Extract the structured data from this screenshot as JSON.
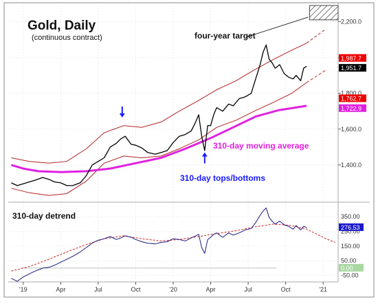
{
  "colors": {
    "price": "#000000",
    "channel": "#b22222",
    "ma": "#e020e0",
    "ann_blue": "#1a1aff",
    "detrend_line": "#1a1a80",
    "detrend_ma": "#cc2222",
    "grid": "#d0d0d0",
    "badge_red": "#ee0000",
    "badge_black": "#000000",
    "badge_magenta": "#e020e0",
    "badge_blue": "#1a1acc",
    "badge_green": "#a8d8a0"
  },
  "chart_data": [
    {
      "type": "line",
      "title": "Gold, Daily",
      "subtitle": "(continuous contract)",
      "x_ticks": [
        "'19",
        "Apr",
        "Jul",
        "Oct",
        "'20",
        "Apr",
        "Jul",
        "Oct",
        "'21"
      ],
      "y_ticks": [
        "2,200.0",
        "2,000.0",
        "1,800.0",
        "1,600.0",
        "1,400.0"
      ],
      "ylim": [
        1200,
        2290
      ],
      "x_range": [
        2018.9,
        2021.1
      ],
      "annotations": [
        {
          "text": "four-year target"
        },
        {
          "text": "310-day moving average"
        },
        {
          "text": "310-day tops/bottoms"
        }
      ],
      "badges": [
        {
          "value": "1,987.7",
          "color": "badge_red"
        },
        {
          "value": "1,951.7",
          "color": "badge_black"
        },
        {
          "value": "1,762.7",
          "color": "badge_red"
        },
        {
          "value": "1,722.9",
          "color": "badge_magenta"
        }
      ],
      "price": [
        [
          2018.92,
          1300
        ],
        [
          2018.96,
          1285
        ],
        [
          2019.0,
          1295
        ],
        [
          2019.04,
          1305
        ],
        [
          2019.08,
          1315
        ],
        [
          2019.13,
          1330
        ],
        [
          2019.17,
          1320
        ],
        [
          2019.21,
          1305
        ],
        [
          2019.25,
          1300
        ],
        [
          2019.29,
          1285
        ],
        [
          2019.33,
          1285
        ],
        [
          2019.38,
          1300
        ],
        [
          2019.42,
          1340
        ],
        [
          2019.46,
          1400
        ],
        [
          2019.5,
          1420
        ],
        [
          2019.54,
          1440
        ],
        [
          2019.58,
          1500
        ],
        [
          2019.62,
          1520
        ],
        [
          2019.65,
          1545
        ],
        [
          2019.68,
          1560
        ],
        [
          2019.72,
          1515
        ],
        [
          2019.75,
          1510
        ],
        [
          2019.79,
          1495
        ],
        [
          2019.83,
          1470
        ],
        [
          2019.88,
          1460
        ],
        [
          2019.92,
          1470
        ],
        [
          2019.96,
          1480
        ],
        [
          2020.0,
          1525
        ],
        [
          2020.04,
          1560
        ],
        [
          2020.08,
          1570
        ],
        [
          2020.12,
          1590
        ],
        [
          2020.15,
          1640
        ],
        [
          2020.17,
          1680
        ],
        [
          2020.19,
          1560
        ],
        [
          2020.21,
          1480
        ],
        [
          2020.23,
          1620
        ],
        [
          2020.25,
          1620
        ],
        [
          2020.27,
          1680
        ],
        [
          2020.29,
          1720
        ],
        [
          2020.33,
          1700
        ],
        [
          2020.37,
          1740
        ],
        [
          2020.4,
          1730
        ],
        [
          2020.44,
          1770
        ],
        [
          2020.48,
          1780
        ],
        [
          2020.52,
          1800
        ],
        [
          2020.55,
          1880
        ],
        [
          2020.58,
          1960
        ],
        [
          2020.6,
          2030
        ],
        [
          2020.62,
          2070
        ],
        [
          2020.64,
          1990
        ],
        [
          2020.66,
          1970
        ],
        [
          2020.68,
          1940
        ],
        [
          2020.71,
          1960
        ],
        [
          2020.74,
          1910
        ],
        [
          2020.77,
          1890
        ],
        [
          2020.8,
          1880
        ],
        [
          2020.82,
          1900
        ],
        [
          2020.85,
          1870
        ],
        [
          2020.87,
          1940
        ],
        [
          2020.89,
          1951
        ]
      ],
      "moving_average": [
        [
          2018.92,
          1400
        ],
        [
          2019.0,
          1380
        ],
        [
          2019.1,
          1365
        ],
        [
          2019.25,
          1360
        ],
        [
          2019.42,
          1365
        ],
        [
          2019.58,
          1380
        ],
        [
          2019.75,
          1410
        ],
        [
          2019.92,
          1440
        ],
        [
          2020.08,
          1490
        ],
        [
          2020.25,
          1550
        ],
        [
          2020.4,
          1610
        ],
        [
          2020.55,
          1670
        ],
        [
          2020.7,
          1705
        ],
        [
          2020.89,
          1730
        ]
      ],
      "channel_upper": [
        [
          2018.92,
          1440
        ],
        [
          2019.04,
          1420
        ],
        [
          2019.17,
          1410
        ],
        [
          2019.29,
          1420
        ],
        [
          2019.42,
          1490
        ],
        [
          2019.54,
          1580
        ],
        [
          2019.67,
          1620
        ],
        [
          2019.79,
          1610
        ],
        [
          2019.92,
          1640
        ],
        [
          2020.04,
          1700
        ],
        [
          2020.17,
          1760
        ],
        [
          2020.29,
          1820
        ],
        [
          2020.42,
          1870
        ],
        [
          2020.54,
          1930
        ],
        [
          2020.67,
          1990
        ],
        [
          2020.79,
          2040
        ],
        [
          2020.89,
          2080
        ]
      ],
      "channel_lower": [
        [
          2018.92,
          1270
        ],
        [
          2019.04,
          1245
        ],
        [
          2019.17,
          1230
        ],
        [
          2019.29,
          1240
        ],
        [
          2019.42,
          1310
        ],
        [
          2019.54,
          1410
        ],
        [
          2019.67,
          1450
        ],
        [
          2019.79,
          1440
        ],
        [
          2019.92,
          1450
        ],
        [
          2020.04,
          1490
        ],
        [
          2020.17,
          1540
        ],
        [
          2020.29,
          1610
        ],
        [
          2020.42,
          1650
        ],
        [
          2020.54,
          1700
        ],
        [
          2020.67,
          1750
        ],
        [
          2020.79,
          1800
        ],
        [
          2020.89,
          1860
        ]
      ],
      "channel_upper_proj": [
        [
          2020.89,
          2080
        ],
        [
          2021.02,
          2160
        ]
      ],
      "channel_lower_proj": [
        [
          2020.89,
          1860
        ],
        [
          2021.02,
          1930
        ]
      ]
    },
    {
      "type": "line",
      "title": "310-day detrend",
      "y_ticks": [
        "350.00",
        "250.00",
        "150.00",
        "50.00",
        "-50.00"
      ],
      "ylim": [
        -85,
        440
      ],
      "badges": [
        {
          "value": "276.53",
          "color": "badge_blue"
        },
        {
          "value": "0.00",
          "color": "badge_green"
        }
      ],
      "detrend": [
        [
          2018.92,
          -70
        ],
        [
          2018.96,
          -90
        ],
        [
          2019.0,
          -60
        ],
        [
          2019.04,
          -40
        ],
        [
          2019.08,
          -20
        ],
        [
          2019.13,
          0
        ],
        [
          2019.17,
          5
        ],
        [
          2019.21,
          20
        ],
        [
          2019.25,
          40
        ],
        [
          2019.29,
          60
        ],
        [
          2019.33,
          80
        ],
        [
          2019.38,
          110
        ],
        [
          2019.42,
          140
        ],
        [
          2019.46,
          170
        ],
        [
          2019.5,
          190
        ],
        [
          2019.54,
          200
        ],
        [
          2019.58,
          215
        ],
        [
          2019.62,
          195
        ],
        [
          2019.65,
          205
        ],
        [
          2019.68,
          220
        ],
        [
          2019.72,
          210
        ],
        [
          2019.75,
          195
        ],
        [
          2019.79,
          180
        ],
        [
          2019.83,
          170
        ],
        [
          2019.88,
          165
        ],
        [
          2019.92,
          175
        ],
        [
          2019.96,
          180
        ],
        [
          2020.0,
          200
        ],
        [
          2020.04,
          195
        ],
        [
          2020.08,
          185
        ],
        [
          2020.12,
          205
        ],
        [
          2020.15,
          220
        ],
        [
          2020.17,
          230
        ],
        [
          2020.19,
          140
        ],
        [
          2020.21,
          100
        ],
        [
          2020.23,
          195
        ],
        [
          2020.25,
          210
        ],
        [
          2020.27,
          230
        ],
        [
          2020.29,
          240
        ],
        [
          2020.33,
          210
        ],
        [
          2020.37,
          240
        ],
        [
          2020.4,
          225
        ],
        [
          2020.44,
          240
        ],
        [
          2020.48,
          260
        ],
        [
          2020.52,
          270
        ],
        [
          2020.55,
          310
        ],
        [
          2020.58,
          360
        ],
        [
          2020.6,
          390
        ],
        [
          2020.62,
          410
        ],
        [
          2020.64,
          345
        ],
        [
          2020.66,
          320
        ],
        [
          2020.68,
          300
        ],
        [
          2020.71,
          320
        ],
        [
          2020.74,
          295
        ],
        [
          2020.77,
          285
        ],
        [
          2020.8,
          265
        ],
        [
          2020.82,
          290
        ],
        [
          2020.85,
          260
        ],
        [
          2020.87,
          285
        ],
        [
          2020.89,
          276
        ]
      ],
      "detrend_ma": [
        [
          2018.92,
          -20
        ],
        [
          2019.04,
          10
        ],
        [
          2019.17,
          60
        ],
        [
          2019.29,
          110
        ],
        [
          2019.42,
          160
        ],
        [
          2019.54,
          200
        ],
        [
          2019.67,
          220
        ],
        [
          2019.79,
          200
        ],
        [
          2019.92,
          185
        ],
        [
          2020.04,
          195
        ],
        [
          2020.17,
          215
        ],
        [
          2020.29,
          235
        ],
        [
          2020.42,
          255
        ],
        [
          2020.54,
          280
        ],
        [
          2020.67,
          300
        ],
        [
          2020.79,
          290
        ],
        [
          2020.89,
          265
        ],
        [
          2020.96,
          230
        ],
        [
          2021.02,
          200
        ],
        [
          2021.08,
          175
        ]
      ]
    }
  ]
}
